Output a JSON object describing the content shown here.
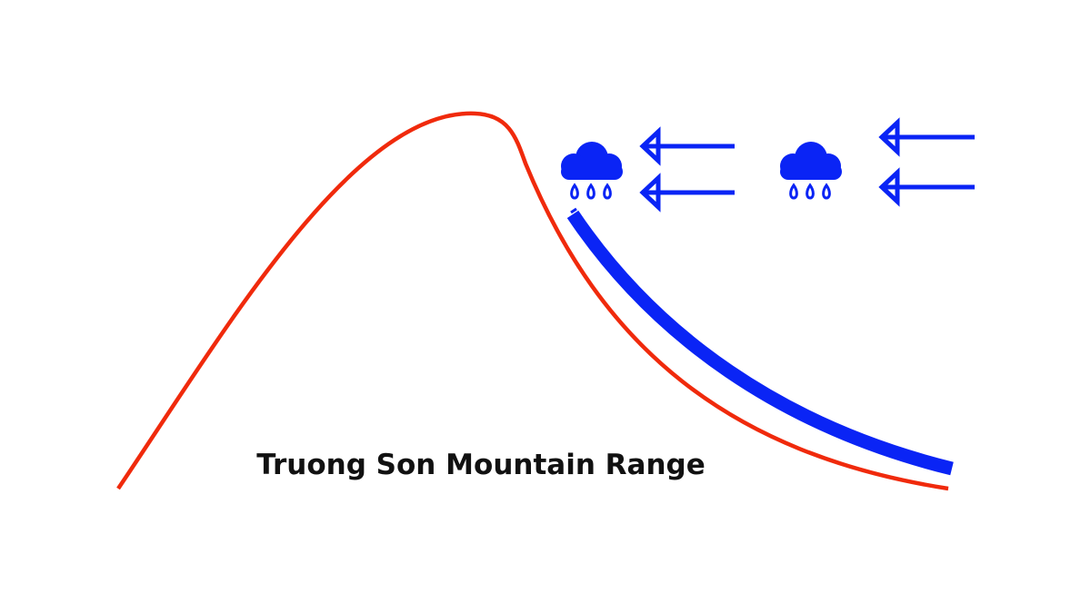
{
  "diagram": {
    "label": "Truong Son Mountain Range"
  },
  "icons": {
    "cloud": "rain-cloud-icon",
    "arrow": "left-arrow-icon"
  },
  "colors": {
    "mountain": "#f02a0c",
    "rain_band": "#0a24f5",
    "clouds": "#0a24f5",
    "wind_arrows": "#0a24f5",
    "label": "#111111"
  }
}
